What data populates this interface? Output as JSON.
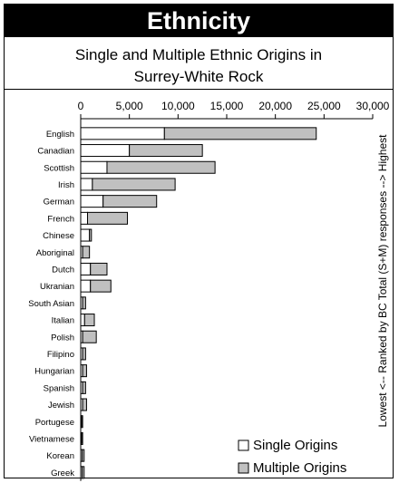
{
  "header": {
    "title": "Ethnicity",
    "subtitle_line1": "Single and Multiple Ethnic Origins in",
    "subtitle_line2": "Surrey-White Rock"
  },
  "chart_data": {
    "type": "bar",
    "orientation": "horizontal",
    "stacked": true,
    "categories": [
      "English",
      "Canadian",
      "Scottish",
      "Irish",
      "German",
      "French",
      "Chinese",
      "Aboriginal",
      "Dutch",
      "Ukranian",
      "South Asian",
      "Italian",
      "Polish",
      "Filipino",
      "Hungarian",
      "Spanish",
      "Jewish",
      "Portugese",
      "Vietnamese",
      "Korean",
      "Greek"
    ],
    "series": [
      {
        "name": "Single Origins",
        "color": "#ffffff",
        "values": [
          8600,
          5000,
          2700,
          1200,
          2300,
          700,
          900,
          200,
          1000,
          1000,
          200,
          400,
          200,
          200,
          200,
          200,
          200,
          100,
          100,
          150,
          150
        ]
      },
      {
        "name": "Multiple Origins",
        "color": "#c0c0c0",
        "values": [
          15600,
          7500,
          11100,
          8500,
          5500,
          4100,
          200,
          700,
          1700,
          2100,
          300,
          1000,
          1400,
          300,
          400,
          300,
          400,
          100,
          100,
          200,
          200
        ]
      }
    ],
    "xlim": [
      0,
      30000
    ],
    "xticks": [
      0,
      5000,
      10000,
      15000,
      20000,
      25000,
      30000
    ],
    "xtick_labels": [
      "0",
      "5,000",
      "10,000",
      "15,000",
      "20,000",
      "25,000",
      "30,000"
    ],
    "ylabel": "Lowest <-- Ranked by BC Total (S+M) responses --> Highest",
    "legend_position": "bottom-right",
    "grid": false
  }
}
